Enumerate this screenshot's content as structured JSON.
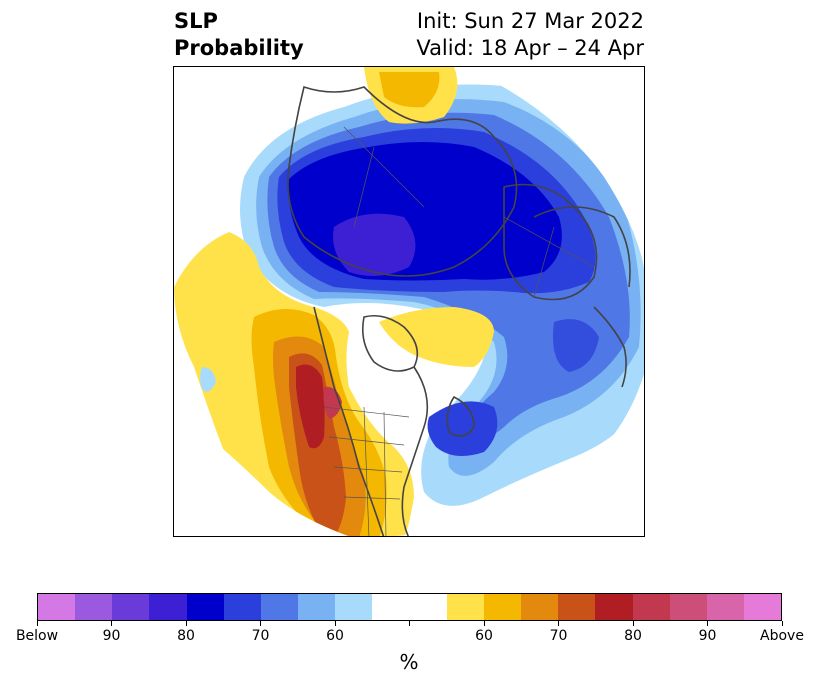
{
  "title": {
    "left_line1": "SLP",
    "left_line2": "Probability",
    "right_line1": "Init: Sun 27 Mar 2022",
    "right_line2": "Valid: 18 Apr – 24 Apr"
  },
  "colorbar": {
    "colors": [
      "#d478e6",
      "#9b59e0",
      "#6a3bd9",
      "#3d1fd4",
      "#0000cc",
      "#2a3fdc",
      "#4f77e6",
      "#78b2f2",
      "#a8dbfb",
      "#ffffff",
      "#ffffff",
      "#ffe14a",
      "#f5b800",
      "#e38a0e",
      "#c95218",
      "#b01e24",
      "#c2384f",
      "#cc4f7a",
      "#d865aa",
      "#e67ad8"
    ],
    "tick_labels": [
      "Below",
      "90",
      "80",
      "70",
      "60",
      "",
      "60",
      "70",
      "80",
      "90",
      "Above"
    ],
    "unit_label": "%"
  },
  "map": {
    "projection": "north-polar-stereographic",
    "shading_levels": {
      "below_light": "#a8dbfb",
      "below_60": "#78b2f2",
      "below_70": "#4f77e6",
      "below_75": "#2a3fdc",
      "below_80": "#0000cc",
      "below_85": "#3d1fd4",
      "above_50": "#ffe14a",
      "above_60": "#f5b800",
      "above_65": "#e38a0e",
      "above_70": "#c95218",
      "above_75": "#b01e24",
      "above_80": "#c2384f"
    }
  }
}
